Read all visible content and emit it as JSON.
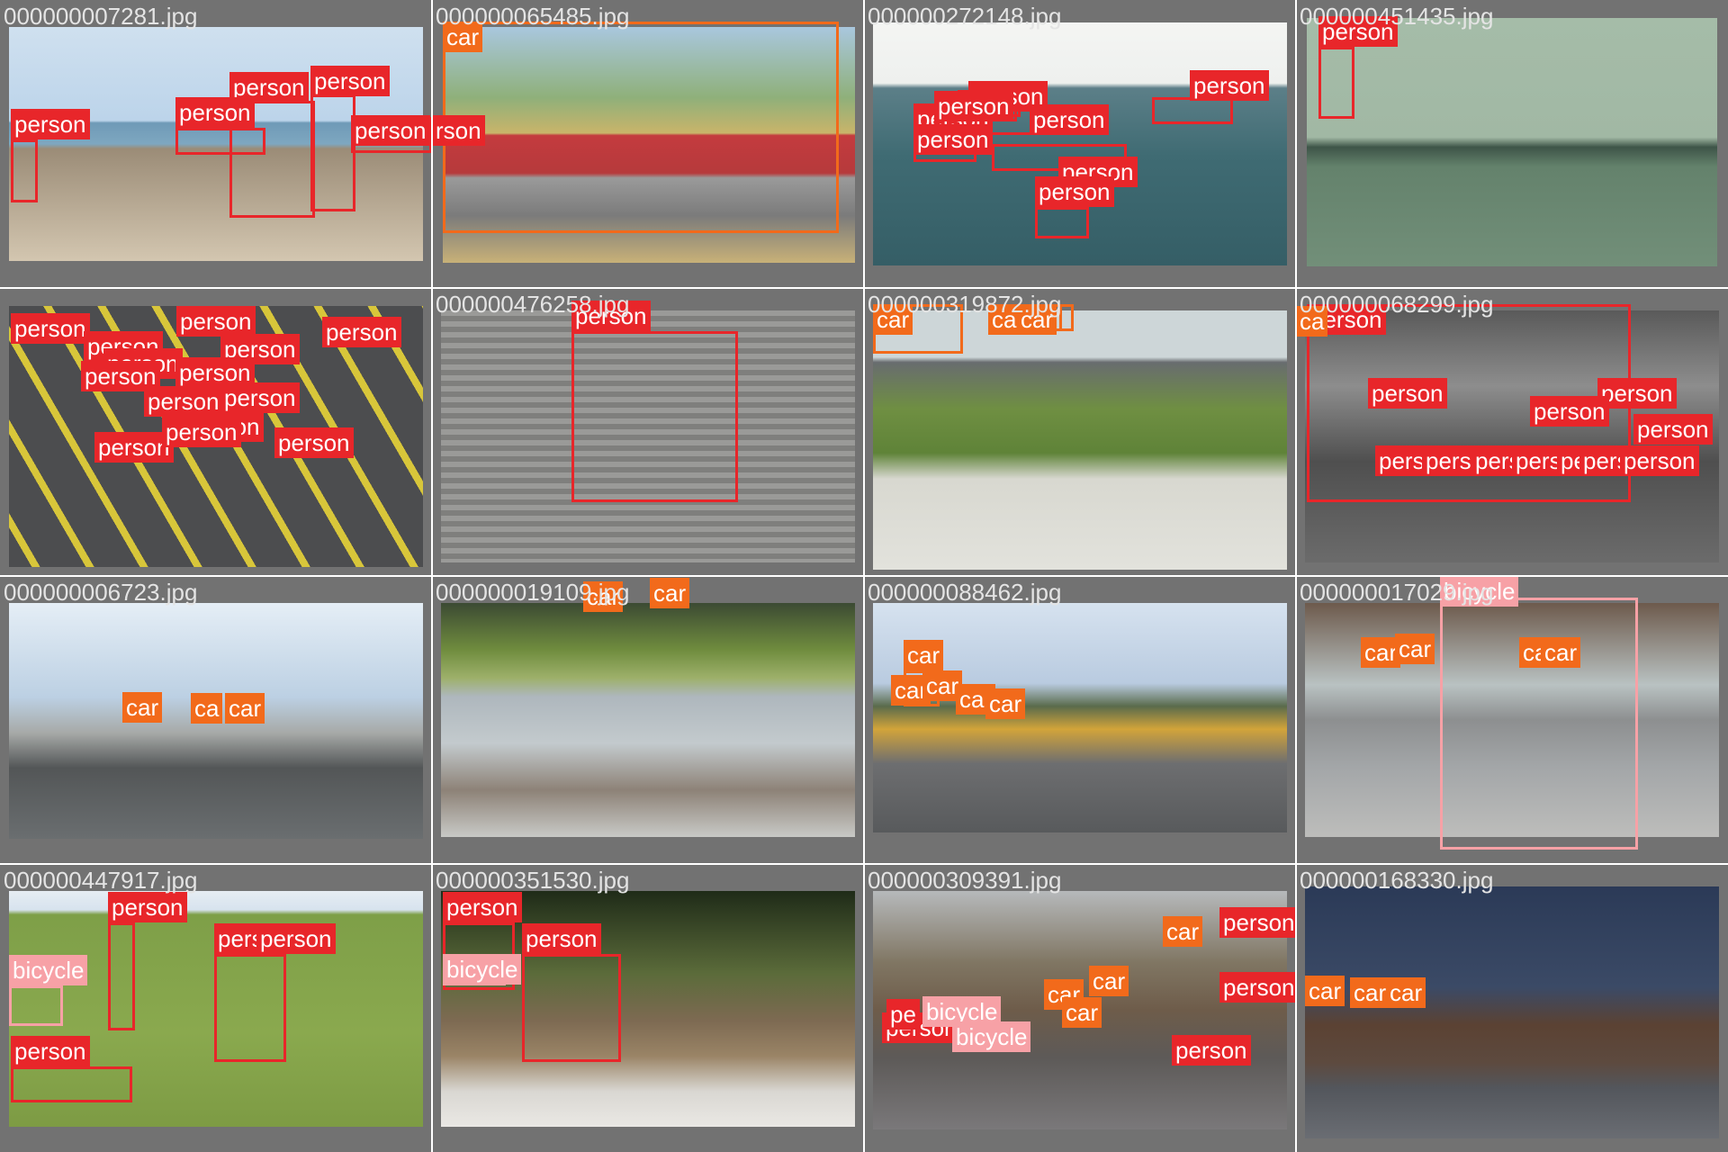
{
  "colors": {
    "person": "#e8262a",
    "car": "#f26a1b",
    "bicycle": "#f7a1a6",
    "tile_bg": "#727272",
    "filename_text": "#e4e4e4"
  },
  "tiles": [
    {
      "filename": "000000007281.jpg",
      "scene": "beach",
      "detections": [
        {
          "label": "person"
        },
        {
          "label": "person"
        },
        {
          "label": "person"
        },
        {
          "label": "person"
        },
        {
          "label": "person"
        }
      ]
    },
    {
      "filename": "000000065485.jpg",
      "scene": "car",
      "detections": [
        {
          "label": "car"
        },
        {
          "label": "rson"
        }
      ]
    },
    {
      "filename": "000000272148.jpg",
      "scene": "sea",
      "detections": [
        {
          "label": "person"
        },
        {
          "label": "person"
        },
        {
          "label": "person"
        },
        {
          "label": "person"
        },
        {
          "label": "person"
        },
        {
          "label": "person"
        },
        {
          "label": "person"
        },
        {
          "label": "person"
        }
      ]
    },
    {
      "filename": "000000451435.jpg",
      "scene": "tennis",
      "detections": [
        {
          "label": "person"
        }
      ]
    },
    {
      "filename": "",
      "scene": "crowd",
      "detections": [
        {
          "label": "person"
        },
        {
          "label": "person"
        },
        {
          "label": "person"
        },
        {
          "label": "person"
        },
        {
          "label": "person"
        },
        {
          "label": "person"
        },
        {
          "label": "person"
        },
        {
          "label": "person"
        },
        {
          "label": "person"
        },
        {
          "label": "person"
        },
        {
          "label": "person"
        },
        {
          "label": "person"
        },
        {
          "label": "person"
        },
        {
          "label": "person"
        }
      ]
    },
    {
      "filename": "000000476258.jpg",
      "scene": "skater",
      "detections": [
        {
          "label": "person"
        }
      ]
    },
    {
      "filename": "000000319872.jpg",
      "scene": "bench",
      "detections": [
        {
          "label": "car"
        },
        {
          "label": "car"
        },
        {
          "label": "car"
        }
      ]
    },
    {
      "filename": "000000068299.jpg",
      "scene": "class",
      "detections": [
        {
          "label": "person"
        },
        {
          "label": "person"
        },
        {
          "label": "person"
        },
        {
          "label": "person"
        },
        {
          "label": "person"
        },
        {
          "label": "person"
        },
        {
          "label": "person"
        },
        {
          "label": "person"
        },
        {
          "label": "person"
        },
        {
          "label": "person"
        },
        {
          "label": "person"
        },
        {
          "label": "person"
        },
        {
          "label": "ca"
        }
      ]
    },
    {
      "filename": "000000006723.jpg",
      "scene": "street",
      "detections": [
        {
          "label": "car"
        },
        {
          "label": "ca"
        },
        {
          "label": "car"
        }
      ]
    },
    {
      "filename": "000000019109.jpg",
      "scene": "river",
      "detections": [
        {
          "label": "car"
        },
        {
          "label": "car"
        }
      ]
    },
    {
      "filename": "000000088462.jpg",
      "scene": "bus",
      "detections": [
        {
          "label": "car"
        },
        {
          "label": "car"
        },
        {
          "label": "car"
        },
        {
          "label": "car"
        },
        {
          "label": "car"
        }
      ]
    },
    {
      "filename": "000000017029.jpg",
      "scene": "bike",
      "detections": [
        {
          "label": "bicycle"
        },
        {
          "label": "car"
        },
        {
          "label": "car"
        },
        {
          "label": "car"
        },
        {
          "label": "car"
        }
      ]
    },
    {
      "filename": "000000447917.jpg",
      "scene": "soccer",
      "detections": [
        {
          "label": "person"
        },
        {
          "label": "person"
        },
        {
          "label": "person"
        },
        {
          "label": "bicycle"
        },
        {
          "label": "person"
        }
      ]
    },
    {
      "filename": "000000351530.jpg",
      "scene": "chairs",
      "detections": [
        {
          "label": "person"
        },
        {
          "label": "bicycle"
        },
        {
          "label": "person"
        }
      ]
    },
    {
      "filename": "000000309391.jpg",
      "scene": "city",
      "detections": [
        {
          "label": "person"
        },
        {
          "label": "car"
        },
        {
          "label": "person"
        },
        {
          "label": "car"
        },
        {
          "label": "car"
        },
        {
          "label": "bicycle"
        },
        {
          "label": "person"
        },
        {
          "label": "bicycle"
        },
        {
          "label": "pe"
        },
        {
          "label": "car"
        },
        {
          "label": "person"
        }
      ]
    },
    {
      "filename": "000000168330.jpg",
      "scene": "clock",
      "detections": [
        {
          "label": "car"
        },
        {
          "label": "car"
        },
        {
          "label": "car"
        }
      ]
    }
  ]
}
